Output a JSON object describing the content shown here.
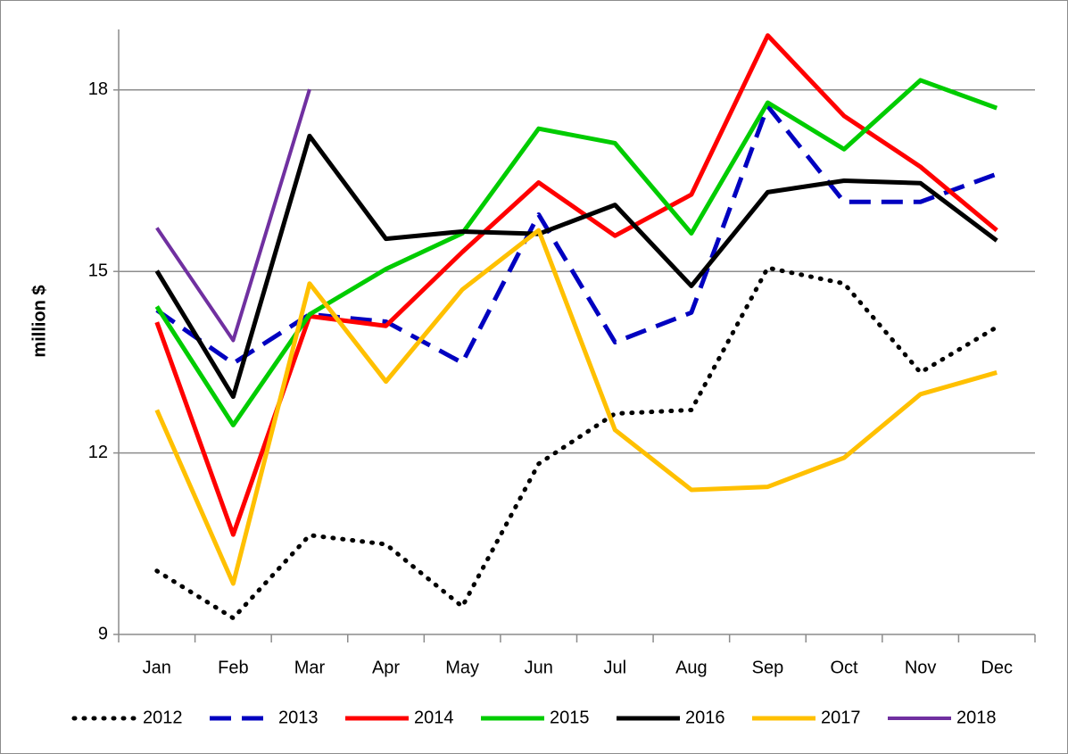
{
  "chart_data": {
    "type": "line",
    "y_label": "million $",
    "categories": [
      "Jan",
      "Feb",
      "Mar",
      "Apr",
      "May",
      "Jun",
      "Jul",
      "Aug",
      "Sep",
      "Oct",
      "Nov",
      "Dec"
    ],
    "ylim": [
      9,
      19
    ],
    "yticks": [
      9,
      12,
      15,
      18
    ],
    "grid": true,
    "legend": "bottom",
    "series": [
      {
        "name": "2012",
        "color": "#000000",
        "line_style": "dotted",
        "values": [
          10.05,
          9.27,
          10.64,
          10.49,
          9.46,
          11.82,
          12.65,
          12.71,
          15.06,
          14.8,
          13.33,
          14.08
        ]
      },
      {
        "name": "2013",
        "color": "#0000c0",
        "line_style": "dashed",
        "values": [
          14.36,
          13.48,
          14.29,
          14.17,
          13.49,
          15.94,
          13.83,
          14.32,
          17.73,
          16.15,
          16.15,
          16.61
        ]
      },
      {
        "name": "2014",
        "color": "#ff0000",
        "line_style": "solid",
        "values": [
          14.16,
          10.65,
          14.26,
          14.1,
          15.32,
          16.47,
          15.59,
          16.27,
          18.9,
          17.57,
          16.73,
          15.68
        ]
      },
      {
        "name": "2015",
        "color": "#00cc00",
        "line_style": "solid",
        "values": [
          14.42,
          12.46,
          14.29,
          15.04,
          15.63,
          17.36,
          17.12,
          15.63,
          17.79,
          17.02,
          18.16,
          17.7
        ]
      },
      {
        "name": "2016",
        "color": "#000000",
        "line_style": "solid",
        "values": [
          15.01,
          12.93,
          17.24,
          15.54,
          15.66,
          15.62,
          16.1,
          14.76,
          16.31,
          16.5,
          16.46,
          15.51
        ]
      },
      {
        "name": "2017",
        "color": "#ffc000",
        "line_style": "solid",
        "values": [
          12.71,
          9.84,
          14.8,
          13.18,
          14.7,
          15.68,
          12.38,
          11.39,
          11.44,
          11.92,
          12.97,
          13.33
        ]
      },
      {
        "name": "2018",
        "color": "#7030a0",
        "line_style": "thin",
        "values": [
          15.72,
          13.86,
          18.01,
          null,
          null,
          null,
          null,
          null,
          null,
          null,
          null,
          null
        ]
      }
    ]
  }
}
